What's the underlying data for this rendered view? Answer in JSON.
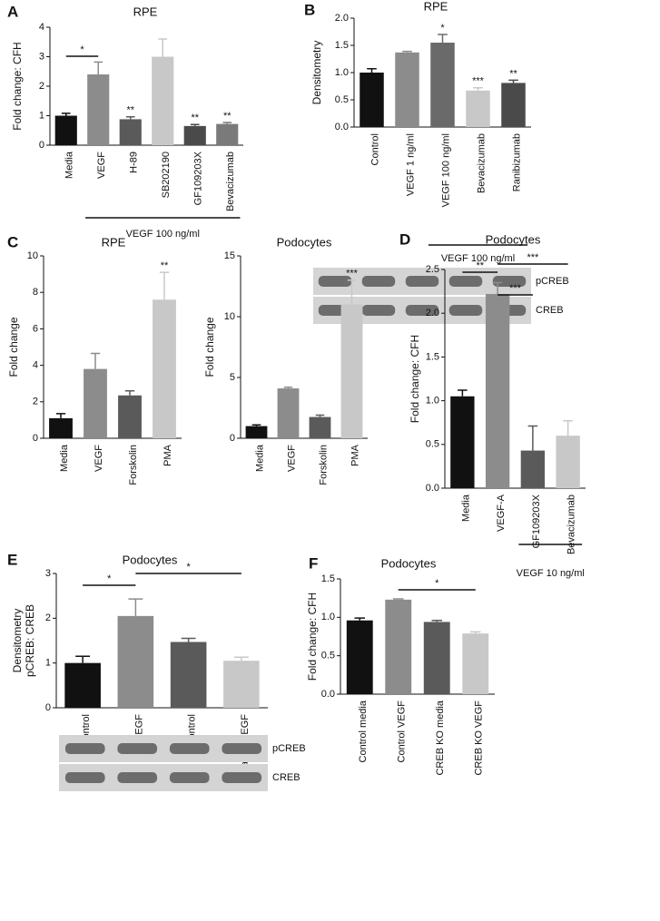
{
  "chart_data": [
    {
      "type": "bar",
      "panel": "A",
      "title": "RPE",
      "ylabel": [
        "Fold change: CFH"
      ],
      "categories": [
        "Media",
        "VEGF",
        "H-89",
        "SB202190",
        "GF109203X",
        "Bevacizumab"
      ],
      "values": [
        1.0,
        2.4,
        0.88,
        3.0,
        0.65,
        0.72
      ],
      "errors": [
        0.08,
        0.42,
        0.08,
        0.6,
        0.05,
        0.05
      ],
      "colors": [
        "#111111",
        "#8c8c8c",
        "#5a5a5a",
        "#c8c8c8",
        "#4a4a4a",
        "#7a7a7a"
      ],
      "ylim": [
        0,
        4
      ],
      "yticks": [
        0,
        1,
        2,
        3,
        4
      ],
      "value_annotations": [
        null,
        null,
        "**",
        null,
        "**",
        "**"
      ],
      "brackets": [
        {
          "text": "*",
          "from": "Media",
          "to": "VEGF"
        }
      ],
      "group": {
        "label": "VEGF 100 ng/ml",
        "from": "VEGF",
        "to": "Bevacizumab"
      }
    },
    {
      "type": "bar",
      "panel": "B",
      "title": "RPE",
      "ylabel": [
        "Densitometry"
      ],
      "categories": [
        "Control",
        "VEGF 1 ng/ml",
        "VEGF 100 ng/ml",
        "Bevacizumab",
        "Ranibizumab"
      ],
      "values": [
        1.0,
        1.37,
        1.55,
        0.67,
        0.81
      ],
      "errors": [
        0.07,
        0.02,
        0.15,
        0.05,
        0.05
      ],
      "colors": [
        "#111111",
        "#8c8c8c",
        "#6a6a6a",
        "#c8c8c8",
        "#4a4a4a"
      ],
      "ylim": [
        0,
        2
      ],
      "yticks": [
        {
          "value": 0,
          "label": "0.0"
        },
        0.5,
        {
          "value": 1,
          "label": "1.0"
        },
        1.5,
        {
          "value": 2,
          "label": "2.0"
        }
      ],
      "value_annotations": [
        null,
        null,
        "*",
        "***",
        "**"
      ],
      "group": {
        "label": "VEGF 100 ng/ml",
        "from": "VEGF 100 ng/ml",
        "to": "Ranibizumab"
      },
      "blot_labels": [
        "pCREB",
        "CREB"
      ]
    },
    {
      "type": "bar",
      "panel": "C",
      "title": "RPE",
      "ylabel": [
        "Fold change"
      ],
      "categories": [
        "Media",
        "VEGF",
        "Forskolin",
        "PMA"
      ],
      "values": [
        1.1,
        3.8,
        2.35,
        7.6
      ],
      "errors": [
        0.25,
        0.85,
        0.25,
        1.5
      ],
      "colors": [
        "#111111",
        "#8c8c8c",
        "#5a5a5a",
        "#c8c8c8"
      ],
      "ylim": [
        0,
        10
      ],
      "yticks": [
        0,
        2,
        4,
        6,
        8,
        10
      ],
      "value_annotations": [
        null,
        null,
        null,
        "**"
      ]
    },
    {
      "type": "bar",
      "title": "Podocytes",
      "ylabel": [
        "Fold change"
      ],
      "categories": [
        "Media",
        "VEGF",
        "Forskolin",
        "PMA"
      ],
      "values": [
        1.0,
        4.1,
        1.75,
        11.0
      ],
      "errors": [
        0.1,
        0.1,
        0.15,
        2.0
      ],
      "colors": [
        "#111111",
        "#8c8c8c",
        "#5a5a5a",
        "#c8c8c8"
      ],
      "ylim": [
        0,
        15
      ],
      "yticks": [
        0,
        5,
        10,
        15
      ],
      "value_annotations": [
        null,
        null,
        null,
        "***"
      ]
    },
    {
      "type": "bar",
      "panel": "D",
      "title": "Podocytes",
      "ylabel": [
        "Fold change: CFH"
      ],
      "categories": [
        "Media",
        "VEGF-A",
        "GF109203X",
        "Bevacizumab"
      ],
      "values": [
        1.05,
        2.22,
        0.43,
        0.6
      ],
      "errors": [
        0.07,
        0.13,
        0.28,
        0.17
      ],
      "colors": [
        "#111111",
        "#8c8c8c",
        "#5a5a5a",
        "#c8c8c8"
      ],
      "ylim": [
        0,
        2.5
      ],
      "yticks": [
        {
          "value": 0,
          "label": "0.0"
        },
        0.5,
        {
          "value": 1,
          "label": "1.0"
        },
        1.5,
        {
          "value": 2,
          "label": "2.0"
        },
        2.5
      ],
      "brackets": [
        {
          "text": "**",
          "from": "Media",
          "to": "VEGF-A"
        },
        {
          "text": "***",
          "from": "VEGF-A",
          "to": "GF109203X"
        },
        {
          "text": "***",
          "from": "VEGF-A",
          "to": "Bevacizumab"
        }
      ],
      "group": {
        "label": "VEGF 10 ng/ml",
        "from": "GF109203X",
        "to": "Bevacizumab"
      }
    },
    {
      "type": "bar",
      "panel": "E",
      "title": "Podocytes",
      "ylabel": [
        "Densitometry",
        "pCREB: CREB"
      ],
      "categories": [
        "WT control",
        "WT VEGF",
        "PKCa KO control",
        "PKCa KO VEGF"
      ],
      "values": [
        1.0,
        2.05,
        1.47,
        1.05
      ],
      "errors": [
        0.15,
        0.38,
        0.08,
        0.08
      ],
      "colors": [
        "#111111",
        "#8c8c8c",
        "#5a5a5a",
        "#c8c8c8"
      ],
      "ylim": [
        0,
        3
      ],
      "yticks": [
        0,
        1,
        2,
        3
      ],
      "brackets": [
        {
          "text": "*",
          "from": "WT control",
          "to": "WT VEGF"
        },
        {
          "text": "*",
          "from": "WT VEGF",
          "to": "PKCa KO VEGF"
        }
      ],
      "blot_labels": [
        "pCREB",
        "CREB"
      ]
    },
    {
      "type": "bar",
      "panel": "F",
      "title": "Podocytes",
      "ylabel": [
        "Fold change: CFH"
      ],
      "categories": [
        "Control media",
        "Control VEGF",
        "CREB KO media",
        "CREB KO VEGF"
      ],
      "values": [
        0.96,
        1.23,
        0.94,
        0.79
      ],
      "errors": [
        0.03,
        0.01,
        0.02,
        0.02
      ],
      "colors": [
        "#111111",
        "#8c8c8c",
        "#5a5a5a",
        "#c8c8c8"
      ],
      "ylim": [
        0,
        1.5
      ],
      "yticks": [
        {
          "value": 0,
          "label": "0.0"
        },
        0.5,
        {
          "value": 1,
          "label": "1.0"
        },
        1.5
      ],
      "brackets": [
        {
          "text": "*",
          "from": "Control VEGF",
          "to": "CREB KO VEGF"
        }
      ]
    }
  ]
}
